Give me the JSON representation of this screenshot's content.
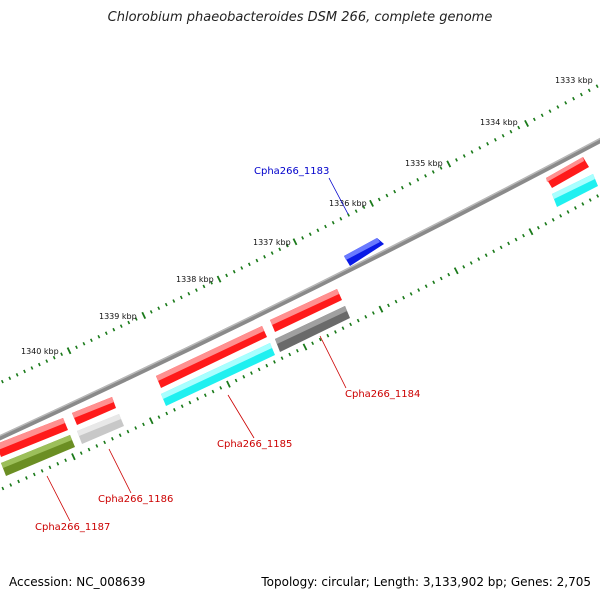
{
  "title": "Chlorobium phaeobacteroides DSM 266, complete genome",
  "footer": {
    "accession": "Accession: NC_008639",
    "summary": "Topology: circular; Length: 3,133,902 bp; Genes: 2,705"
  },
  "scale_labels": [
    "1333 kbp",
    "1334 kbp",
    "1335 kbp",
    "1336 kbp",
    "1337 kbp",
    "1338 kbp",
    "1339 kbp",
    "1340 kbp"
  ],
  "gene_labels": [
    {
      "text": "Cpha266_1183",
      "color": "#0000cc"
    },
    {
      "text": "Cpha266_1184",
      "color": "#cc0000"
    },
    {
      "text": "Cpha266_1185",
      "color": "#cc0000"
    },
    {
      "text": "Cpha266_1186",
      "color": "#cc0000"
    },
    {
      "text": "Cpha266_1187",
      "color": "#cc0000"
    }
  ],
  "colors": {
    "backbone": "#8a8a8a",
    "tick": "#1a7a1a",
    "forward_gene": "#ff1a1a",
    "reverse_cyan": "#1ff0f0",
    "reverse_gray": "#6a6a6a",
    "reverse_lightgray": "#c8c8c8",
    "reverse_olive": "#6b8e23",
    "blue_gene": "#0a1ae6"
  }
}
